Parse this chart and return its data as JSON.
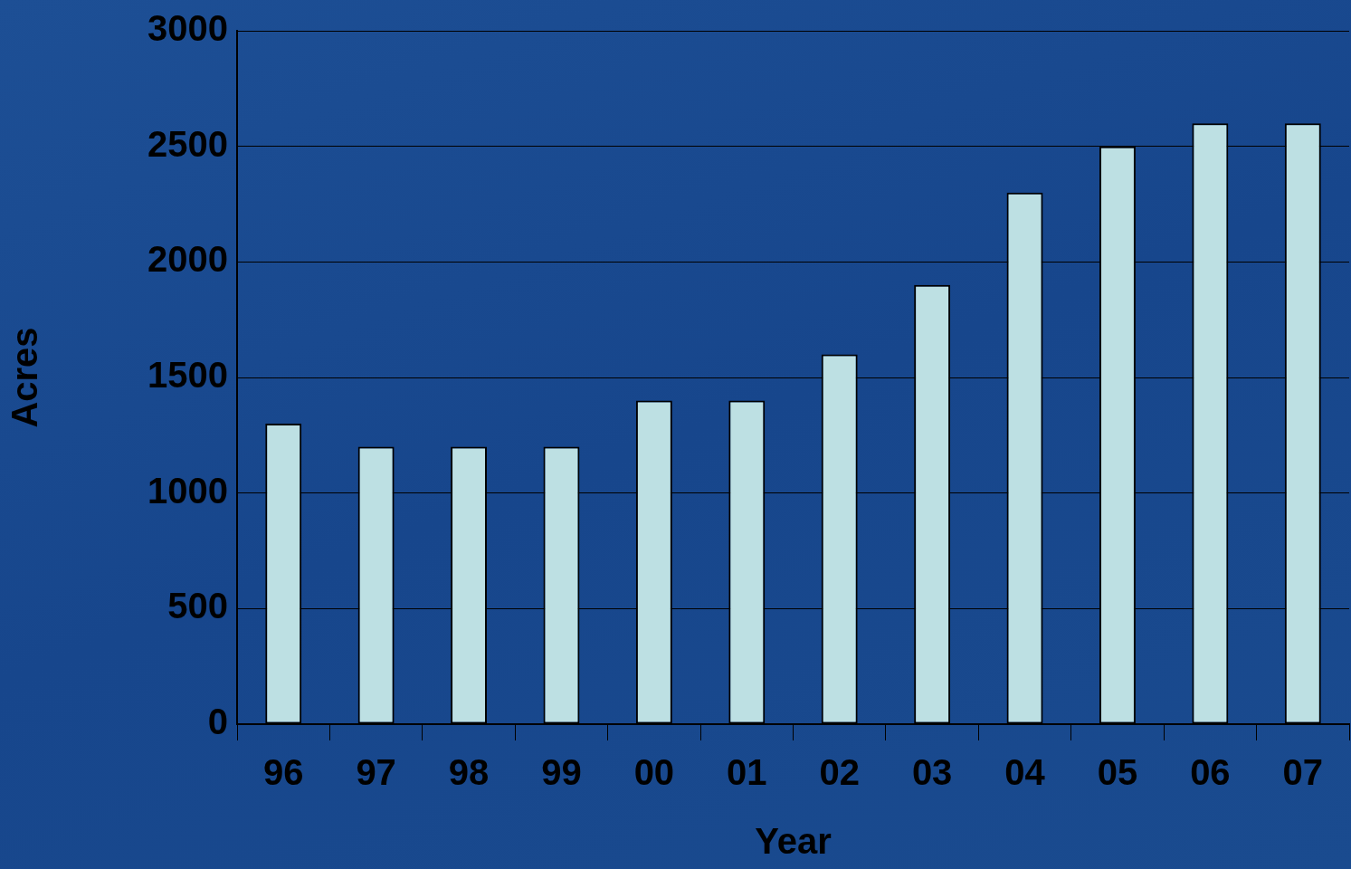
{
  "chart_data": {
    "type": "bar",
    "xlabel": "Year",
    "ylabel": "Acres",
    "categories": [
      "96",
      "97",
      "98",
      "99",
      "00",
      "01",
      "02",
      "03",
      "04",
      "05",
      "06",
      "07"
    ],
    "values": [
      1300,
      1200,
      1200,
      1200,
      1400,
      1400,
      1600,
      1900,
      2300,
      2500,
      2600,
      2600
    ],
    "color": "#bde0e3",
    "ylim": [
      0,
      3000
    ],
    "yticks": [
      0,
      500,
      1000,
      1500,
      2000,
      2500,
      3000
    ],
    "grid": "y",
    "legend": false
  }
}
